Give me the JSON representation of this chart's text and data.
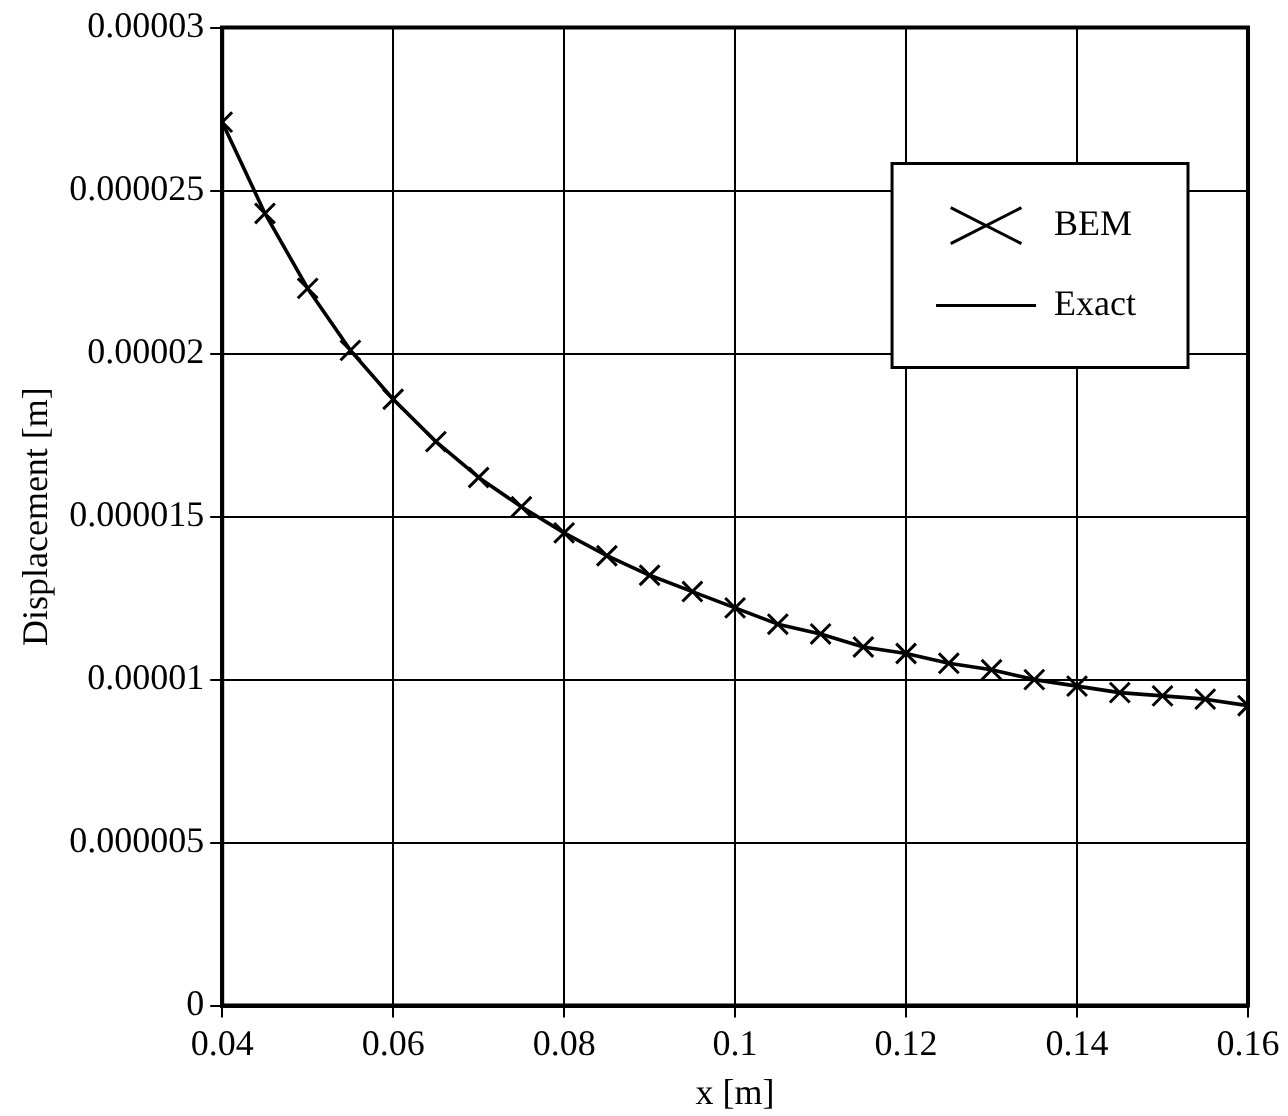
{
  "chart_data": {
    "type": "line",
    "xlabel": "x [m]",
    "ylabel": "Displacement [m]",
    "xlim": [
      0.04,
      0.16
    ],
    "xticks": [
      0.04,
      0.06,
      0.08,
      0.1,
      0.12,
      0.14,
      0.16
    ],
    "ylim": [
      0,
      3e-05
    ],
    "yticks": [
      0,
      {
        "value": 5e-06,
        "label": "0.000005"
      },
      {
        "value": 1e-05,
        "label": "0.00001"
      },
      {
        "value": 1.5e-05,
        "label": "0.000015"
      },
      {
        "value": 2e-05,
        "label": "0.00002"
      },
      {
        "value": 2.5e-05,
        "label": "0.000025"
      },
      {
        "value": 3e-05,
        "label": "0.00003"
      }
    ],
    "grid": true,
    "legend": "top right",
    "x": [
      0.04,
      0.045,
      0.05,
      0.055,
      0.06,
      0.065,
      0.07,
      0.075,
      0.08,
      0.085,
      0.09,
      0.095,
      0.1,
      0.105,
      0.11,
      0.115,
      0.12,
      0.125,
      0.13,
      0.135,
      0.14,
      0.145,
      0.15,
      0.155,
      0.16
    ],
    "series": [
      {
        "name": "BEM",
        "type": "scatter",
        "marker": "cross",
        "color": "#000000",
        "values": [
          2.71e-05,
          2.43e-05,
          2.2e-05,
          2.01e-05,
          1.86e-05,
          1.73e-05,
          1.62e-05,
          1.53e-05,
          1.45e-05,
          1.38e-05,
          1.32e-05,
          1.27e-05,
          1.22e-05,
          1.17e-05,
          1.14e-05,
          1.1e-05,
          1.08e-05,
          1.05e-05,
          1.03e-05,
          1e-05,
          9.8e-06,
          9.6e-06,
          9.5e-06,
          9.4e-06,
          9.2e-06
        ]
      },
      {
        "name": "Exact",
        "marker": "none",
        "line_style": "solid",
        "color": "#000000",
        "values": [
          2.71e-05,
          2.43e-05,
          2.2e-05,
          2.01e-05,
          1.86e-05,
          1.73e-05,
          1.62e-05,
          1.53e-05,
          1.45e-05,
          1.38e-05,
          1.32e-05,
          1.27e-05,
          1.22e-05,
          1.17e-05,
          1.14e-05,
          1.1e-05,
          1.08e-05,
          1.05e-05,
          1.03e-05,
          1e-05,
          9.8e-06,
          9.6e-06,
          9.5e-06,
          9.4e-06,
          9.2e-06
        ]
      }
    ]
  }
}
